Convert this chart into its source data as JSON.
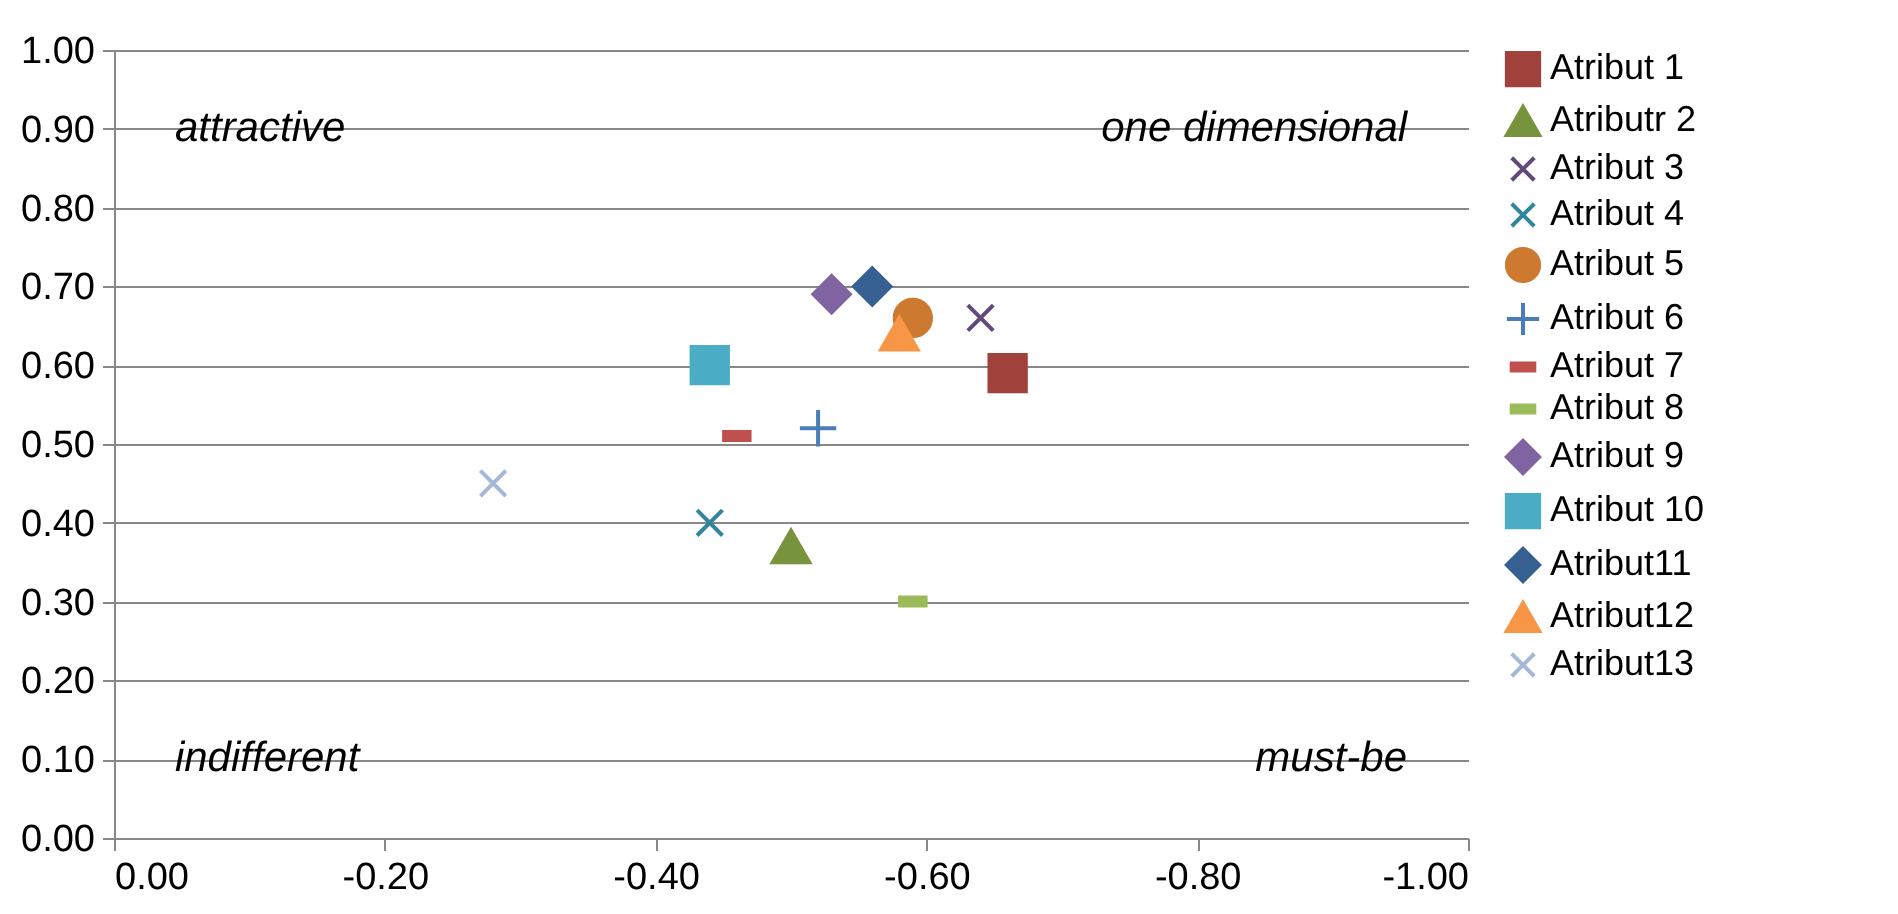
{
  "chart_data": {
    "type": "scatter",
    "xlim": [
      0,
      -1
    ],
    "ylim": [
      0,
      1
    ],
    "xticks": [
      {
        "value": 0,
        "label": "0.00"
      },
      {
        "value": -0.2,
        "label": "-0.20"
      },
      {
        "value": -0.4,
        "label": "-0.40"
      },
      {
        "value": -0.6,
        "label": "-0.60"
      },
      {
        "value": -0.8,
        "label": "-0.80"
      },
      {
        "value": -1,
        "label": "-1.00"
      }
    ],
    "yticks": [
      {
        "value": 0,
        "label": "0.00"
      },
      {
        "value": 0.1,
        "label": "0.10"
      },
      {
        "value": 0.2,
        "label": "0.20"
      },
      {
        "value": 0.3,
        "label": "0.30"
      },
      {
        "value": 0.4,
        "label": "0.40"
      },
      {
        "value": 0.5,
        "label": "0.50"
      },
      {
        "value": 0.6,
        "label": "0.60"
      },
      {
        "value": 0.7,
        "label": "0.70"
      },
      {
        "value": 0.8,
        "label": "0.80"
      },
      {
        "value": 0.9,
        "label": "0.90"
      },
      {
        "value": 1,
        "label": "1.00"
      }
    ],
    "grid": "y",
    "legend": "right",
    "annotations": [
      "attractive",
      "one dimensional",
      "indifferent",
      "must-be"
    ],
    "series": [
      {
        "name": "Atribut 1",
        "color": "#a0413c",
        "marker": "square",
        "x": [
          -0.66
        ],
        "values": [
          0.59
        ]
      },
      {
        "name": "Atributr 2",
        "color": "#77933c",
        "marker": "triangle",
        "x": [
          -0.5
        ],
        "values": [
          0.37
        ]
      },
      {
        "name": "Atribut 3",
        "color": "#604a7b",
        "marker": "cross",
        "x": [
          -0.64
        ],
        "values": [
          0.66
        ]
      },
      {
        "name": "Atribut 4",
        "color": "#31859c",
        "marker": "cross",
        "x": [
          -0.44
        ],
        "values": [
          0.4
        ]
      },
      {
        "name": "Atribut 5",
        "color": "#cd7a30",
        "marker": "circle",
        "x": [
          -0.59
        ],
        "values": [
          0.66
        ]
      },
      {
        "name": "Atribut 6",
        "color": "#4a7ebb",
        "marker": "plus",
        "x": [
          -0.52
        ],
        "values": [
          0.52
        ]
      },
      {
        "name": "Atribut 7",
        "color": "#c0504d",
        "x": [
          -0.46
        ],
        "values": [
          0.51
        ]
      },
      {
        "name": "Atribut 8",
        "color": "#9bbb59",
        "x": [
          -0.59
        ],
        "values": [
          0.3
        ]
      },
      {
        "name": "Atribut 9",
        "color": "#8064a2",
        "marker": "diamond",
        "x": [
          -0.53
        ],
        "values": [
          0.69
        ]
      },
      {
        "name": "Atribut 10",
        "color": "#4bacc6",
        "marker": "square",
        "x": [
          -0.44
        ],
        "values": [
          0.6
        ]
      },
      {
        "name": "Atribut11",
        "color": "#376092",
        "marker": "diamond",
        "x": [
          -0.56
        ],
        "values": [
          0.7
        ]
      },
      {
        "name": "Atribut12",
        "color": "#f79646",
        "marker": "triangle",
        "x": [
          -0.58
        ],
        "values": [
          0.64
        ]
      },
      {
        "name": "Atribut13",
        "color": "#a5b8d8",
        "marker": "cross",
        "x": [
          -0.28
        ],
        "values": [
          0.45
        ]
      }
    ]
  }
}
